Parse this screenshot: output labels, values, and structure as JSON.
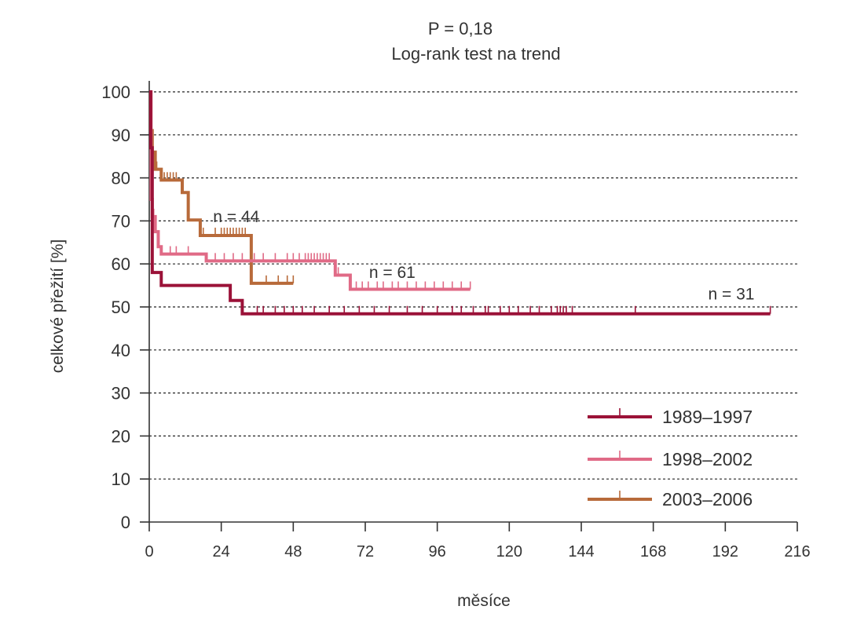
{
  "chart_data": {
    "type": "line",
    "subtype": "kaplan-meier",
    "title": "P = 0,18",
    "subtitle": "Log-rank test na trend",
    "xlabel": "měsíce",
    "ylabel": "celkové přežití [%]",
    "xlim": [
      0,
      216
    ],
    "ylim": [
      0,
      100
    ],
    "x_ticks": [
      0,
      24,
      48,
      72,
      96,
      120,
      144,
      168,
      192,
      216
    ],
    "y_ticks": [
      0,
      10,
      20,
      30,
      40,
      50,
      60,
      70,
      80,
      90,
      100
    ],
    "grid": "horizontal-dotted",
    "legend_position": "bottom-right",
    "series": [
      {
        "name": "1989–1997",
        "color": "#9b1238",
        "n_label": "n = 31",
        "n_label_at": [
          194,
          53
        ],
        "steps": [
          [
            0,
            100
          ],
          [
            0.5,
            87
          ],
          [
            1,
            58
          ],
          [
            4,
            58
          ],
          [
            4,
            55
          ],
          [
            27,
            55
          ],
          [
            27,
            51.5
          ],
          [
            31,
            51.5
          ],
          [
            31,
            48.4
          ],
          [
            207,
            48.4
          ]
        ],
        "censors": [
          36,
          38,
          42,
          45,
          48,
          51,
          55,
          60,
          65,
          70,
          75,
          80,
          86,
          91,
          96,
          101,
          104,
          108,
          112,
          113,
          117,
          120,
          123,
          127,
          130,
          134,
          136,
          137,
          138,
          139,
          141,
          162,
          207
        ]
      },
      {
        "name": "1998–2002",
        "color": "#e06a86",
        "n_label": "n = 61",
        "n_label_at": [
          81,
          58
        ],
        "steps": [
          [
            0,
            100
          ],
          [
            0.6,
            75
          ],
          [
            1,
            71
          ],
          [
            2,
            67.5
          ],
          [
            3,
            64
          ],
          [
            4,
            62.3
          ],
          [
            19,
            62.3
          ],
          [
            19,
            60.7
          ],
          [
            62,
            60.7
          ],
          [
            62,
            57.4
          ],
          [
            67,
            57.4
          ],
          [
            67,
            54.1
          ],
          [
            107,
            54.1
          ]
        ],
        "censors": [
          1.5,
          7,
          9,
          13,
          22,
          25,
          28,
          31,
          35,
          38,
          42,
          46,
          48,
          50,
          52,
          53,
          54,
          55,
          56,
          57,
          58,
          59,
          60,
          63,
          69,
          71,
          73,
          76,
          78,
          81,
          83,
          86,
          89,
          92,
          95,
          98,
          101,
          104,
          107
        ]
      },
      {
        "name": "2003–2006",
        "color": "#b86a3a",
        "n_label": "n = 44",
        "n_label_at": [
          29,
          71
        ],
        "steps": [
          [
            0,
            100
          ],
          [
            0.5,
            91
          ],
          [
            1,
            86
          ],
          [
            2,
            82
          ],
          [
            4,
            79.5
          ],
          [
            11,
            79.5
          ],
          [
            11,
            76.6
          ],
          [
            13,
            76.6
          ],
          [
            13,
            70.2
          ],
          [
            17,
            70.2
          ],
          [
            17,
            66.6
          ],
          [
            34,
            66.6
          ],
          [
            34,
            55.5
          ],
          [
            48,
            55.5
          ]
        ],
        "censors": [
          1,
          2.5,
          5,
          6,
          7,
          8,
          9,
          18,
          22,
          24,
          25,
          26,
          27,
          28,
          29,
          30,
          31,
          32,
          39,
          43,
          46,
          48
        ]
      }
    ]
  }
}
